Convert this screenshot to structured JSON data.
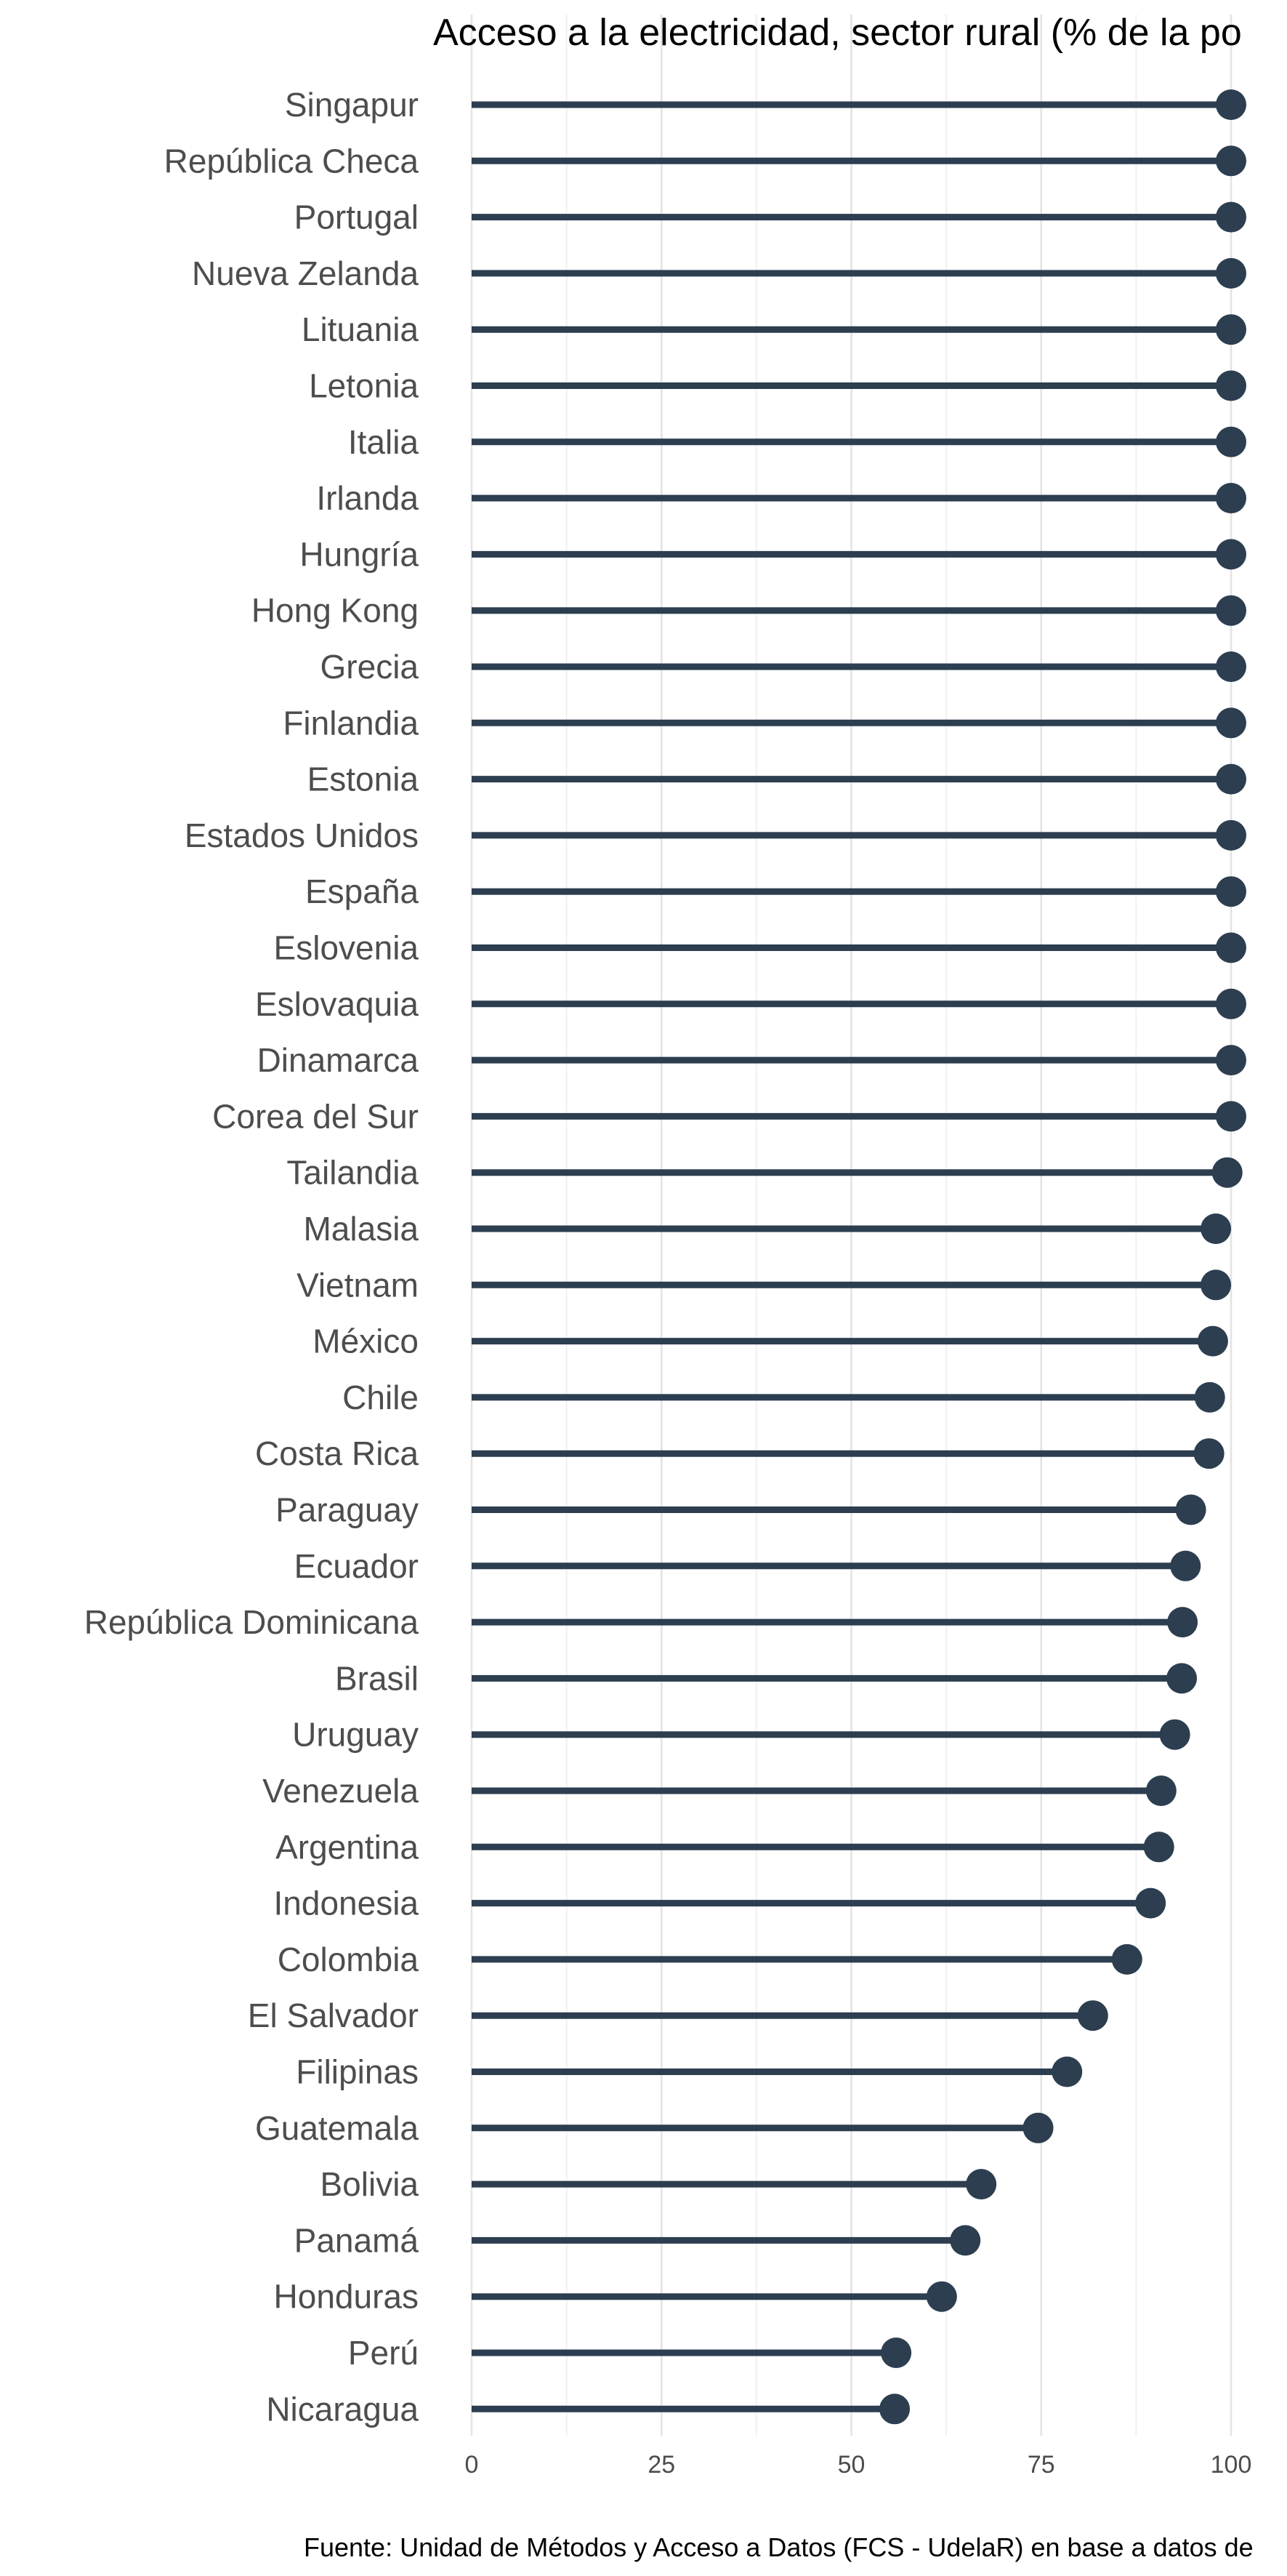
{
  "chart_data": {
    "type": "lollipop",
    "title": "Acceso a la electricidad, sector rural (% de la po",
    "caption": "Fuente: Unidad de Métodos y Acceso a Datos (FCS - UdelaR) en base a datos de",
    "xlim": [
      0,
      100
    ],
    "xticks": [
      0,
      25,
      50,
      75,
      100
    ],
    "grid": true,
    "color": "#2c3e50",
    "categories": [
      "Singapur",
      "República Checa",
      "Portugal",
      "Nueva Zelanda",
      "Lituania",
      "Letonia",
      "Italia",
      "Irlanda",
      "Hungría",
      "Hong Kong",
      "Grecia",
      "Finlandia",
      "Estonia",
      "Estados Unidos",
      "España",
      "Eslovenia",
      "Eslovaquia",
      "Dinamarca",
      "Corea del Sur",
      "Tailandia",
      "Malasia",
      "Vietnam",
      "México",
      "Chile",
      "Costa Rica",
      "Paraguay",
      "Ecuador",
      "República Dominicana",
      "Brasil",
      "Uruguay",
      "Venezuela",
      "Argentina",
      "Indonesia",
      "Colombia",
      "El Salvador",
      "Filipinas",
      "Guatemala",
      "Bolivia",
      "Panamá",
      "Honduras",
      "Perú",
      "Nicaragua"
    ],
    "values": [
      100,
      100,
      100,
      100,
      100,
      100,
      100,
      100,
      100,
      100,
      100,
      100,
      100,
      100,
      100,
      100,
      100,
      100,
      100,
      99.5,
      98,
      98,
      97.6,
      97.2,
      97.1,
      94.7,
      94,
      93.6,
      93.5,
      92.6,
      90.8,
      90.5,
      89.4,
      86.3,
      81.8,
      78.4,
      74.6,
      67.1,
      65,
      61.9,
      55.9,
      55.7
    ]
  }
}
